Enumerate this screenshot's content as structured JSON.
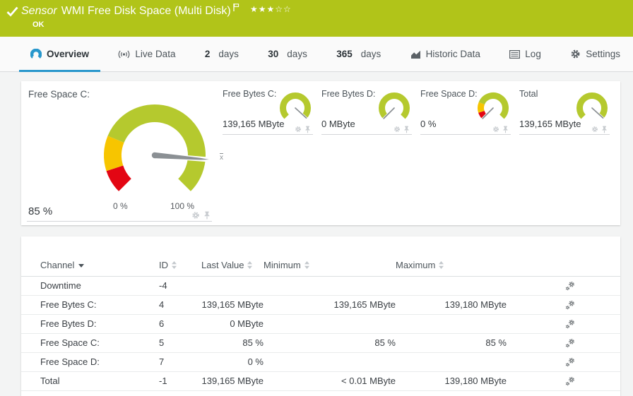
{
  "header": {
    "sensor_word": "Sensor",
    "title": "WMI Free Disk Space (Multi Disk)",
    "status": "OK",
    "rating_filled": "★★★",
    "rating_empty": "☆☆",
    "bg_color": "#b1c419",
    "accent_color": "#2897cc",
    "status_ok_color": "#b1c419"
  },
  "tabs": {
    "overview": "Overview",
    "live_data": "Live Data",
    "d2_num": "2",
    "d2_label": "days",
    "d30_num": "30",
    "d30_label": "days",
    "d365_num": "365",
    "d365_label": "days",
    "historic": "Historic Data",
    "log": "Log",
    "settings": "Settings"
  },
  "gauges": {
    "primary": {
      "label": "Free Space C:",
      "value": "85 %",
      "percent": 85,
      "scale_min": "0 %",
      "scale_max": "100 %",
      "mean_marker": "x",
      "zones": [
        {
          "color": "#e30613",
          "from": 0,
          "to": 10
        },
        {
          "color": "#f7c500",
          "from": 10,
          "to": 25
        },
        {
          "color": "#b5c92e",
          "from": 25,
          "to": 100
        }
      ]
    },
    "small": [
      {
        "label": "Free Bytes C:",
        "value": "139,165 MByte",
        "percent": 99,
        "zones": [
          {
            "color": "#b5c92e",
            "from": 0,
            "to": 100
          }
        ]
      },
      {
        "label": "Free Bytes D:",
        "value": "0 MByte",
        "percent": 0,
        "zones": [
          {
            "color": "#b5c92e",
            "from": 0,
            "to": 100
          }
        ]
      },
      {
        "label": "Free Space D:",
        "value": "0 %",
        "percent": 0,
        "zones": [
          {
            "color": "#e30613",
            "from": 0,
            "to": 10
          },
          {
            "color": "#f7c500",
            "from": 10,
            "to": 25
          },
          {
            "color": "#b5c92e",
            "from": 25,
            "to": 100
          }
        ]
      },
      {
        "label": "Total",
        "value": "139,165 MByte",
        "percent": 99,
        "zones": [
          {
            "color": "#b5c92e",
            "from": 0,
            "to": 100
          }
        ]
      }
    ]
  },
  "table": {
    "headers": {
      "channel": "Channel",
      "id": "ID",
      "last": "Last Value",
      "min": "Minimum",
      "max": "Maximum"
    },
    "rows": [
      {
        "channel": "Downtime",
        "id": "-4",
        "last": "",
        "min": "",
        "max": ""
      },
      {
        "channel": "Free Bytes C:",
        "id": "4",
        "last": "139,165 MByte",
        "min": "139,165 MByte",
        "max": "139,180 MByte"
      },
      {
        "channel": "Free Bytes D:",
        "id": "6",
        "last": "0 MByte",
        "min": "",
        "max": ""
      },
      {
        "channel": "Free Space C:",
        "id": "5",
        "last": "85 %",
        "min": "85 %",
        "max": "85 %"
      },
      {
        "channel": "Free Space D:",
        "id": "7",
        "last": "0 %",
        "min": "",
        "max": ""
      },
      {
        "channel": "Total",
        "id": "-1",
        "last": "139,165 MByte",
        "min": "< 0.01 MByte",
        "max": "139,180 MByte"
      }
    ]
  }
}
